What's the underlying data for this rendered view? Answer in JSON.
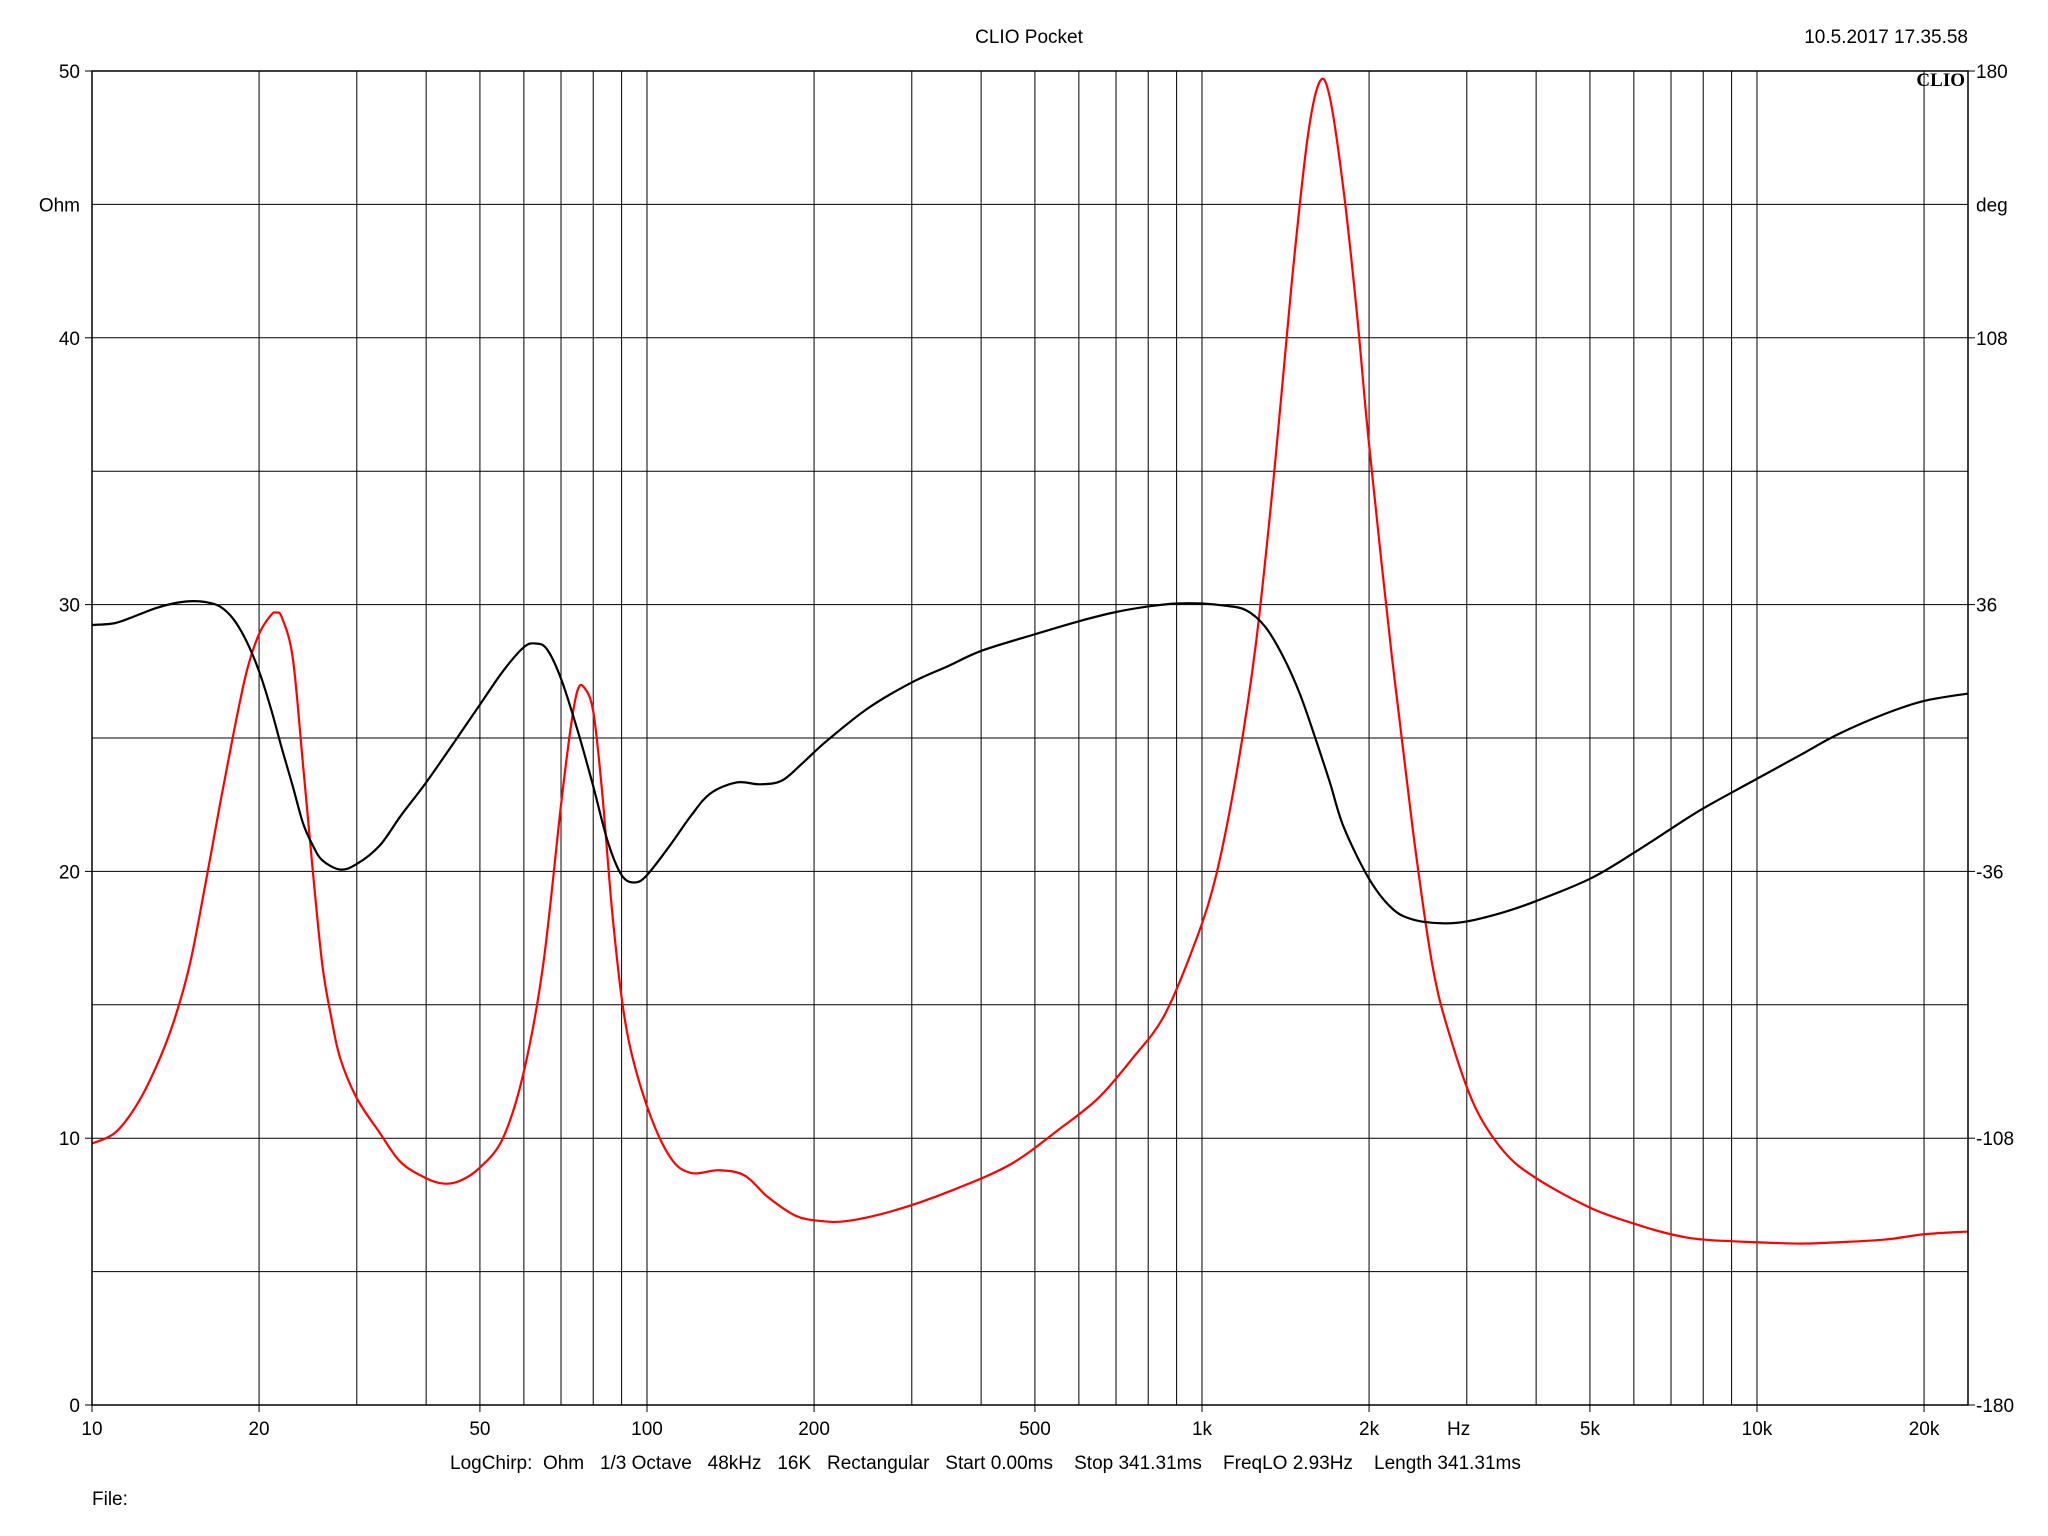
{
  "header": {
    "title": "CLIO Pocket",
    "timestamp": "10.5.2017 17.35.58",
    "logo": "CLIO"
  },
  "footer": {
    "settings": "LogChirp:  Ohm   1/3 Octave   48kHz   16K   Rectangular   Start 0.00ms    Stop 341.31ms    FreqLO 2.93Hz    Length 341.31ms",
    "file_label": "File:"
  },
  "chart_data": {
    "type": "line",
    "x_scale": "log",
    "xlim": [
      10,
      24000
    ],
    "x_tick_values": [
      10,
      20,
      50,
      100,
      200,
      500,
      1000,
      2000,
      5000,
      10000,
      20000
    ],
    "x_tick_labels": [
      "10",
      "20",
      "50",
      "100",
      "200",
      "500",
      "1k",
      "2k",
      "5k",
      "10k",
      "20k"
    ],
    "x_unit_label": "Hz",
    "y_left": {
      "unit": "Ohm",
      "lim": [
        0,
        50
      ],
      "tick_values": [
        0,
        10,
        20,
        30,
        40,
        50
      ],
      "tick_labels": [
        "0",
        "10",
        "20",
        "30",
        "40",
        "50"
      ]
    },
    "y_right": {
      "unit": "deg",
      "lim": [
        -180,
        180
      ],
      "tick_values": [
        -180,
        -108,
        -36,
        36,
        108,
        180
      ],
      "tick_labels": [
        "-180",
        "-108",
        "-36",
        "36",
        "108",
        "180"
      ]
    },
    "grid": true,
    "series": [
      {
        "color": "#ff0000",
        "axis": "left",
        "points": [
          [
            10,
            9.8
          ],
          [
            11,
            10.2
          ],
          [
            12,
            11.2
          ],
          [
            13,
            12.6
          ],
          [
            14,
            14.3
          ],
          [
            15,
            16.5
          ],
          [
            16,
            19.5
          ],
          [
            17,
            22.5
          ],
          [
            18,
            25.2
          ],
          [
            19,
            27.5
          ],
          [
            20,
            28.9
          ],
          [
            21,
            29.6
          ],
          [
            21.5,
            29.7
          ],
          [
            22,
            29.5
          ],
          [
            23,
            28
          ],
          [
            24,
            24
          ],
          [
            25,
            20
          ],
          [
            26,
            16.5
          ],
          [
            27,
            14.5
          ],
          [
            28,
            13
          ],
          [
            30,
            11.5
          ],
          [
            33,
            10.2
          ],
          [
            36,
            9.1
          ],
          [
            40,
            8.5
          ],
          [
            43,
            8.3
          ],
          [
            46,
            8.4
          ],
          [
            50,
            8.9
          ],
          [
            55,
            10
          ],
          [
            60,
            12.5
          ],
          [
            65,
            16.5
          ],
          [
            70,
            22.5
          ],
          [
            73,
            25.5
          ],
          [
            75,
            26.8
          ],
          [
            77,
            26.9
          ],
          [
            80,
            26
          ],
          [
            83,
            23
          ],
          [
            87,
            18
          ],
          [
            92,
            14
          ],
          [
            100,
            11.2
          ],
          [
            110,
            9.3
          ],
          [
            120,
            8.7
          ],
          [
            135,
            8.8
          ],
          [
            150,
            8.6
          ],
          [
            165,
            7.8
          ],
          [
            185,
            7.1
          ],
          [
            205,
            6.9
          ],
          [
            230,
            6.9
          ],
          [
            280,
            7.3
          ],
          [
            350,
            8
          ],
          [
            450,
            9
          ],
          [
            550,
            10.3
          ],
          [
            650,
            11.5
          ],
          [
            750,
            13
          ],
          [
            850,
            14.5
          ],
          [
            950,
            16.8
          ],
          [
            1050,
            19.5
          ],
          [
            1150,
            23.5
          ],
          [
            1250,
            28.5
          ],
          [
            1350,
            35
          ],
          [
            1450,
            42
          ],
          [
            1550,
            47.5
          ],
          [
            1630,
            49.6
          ],
          [
            1700,
            49
          ],
          [
            1800,
            45.5
          ],
          [
            1900,
            41
          ],
          [
            2000,
            36
          ],
          [
            2200,
            28
          ],
          [
            2400,
            21.5
          ],
          [
            2600,
            16.5
          ],
          [
            2800,
            13.8
          ],
          [
            3100,
            11.2
          ],
          [
            3500,
            9.5
          ],
          [
            4000,
            8.5
          ],
          [
            5000,
            7.4
          ],
          [
            6000,
            6.8
          ],
          [
            7000,
            6.4
          ],
          [
            8000,
            6.2
          ],
          [
            10000,
            6.1
          ],
          [
            12000,
            6.05
          ],
          [
            14000,
            6.1
          ],
          [
            17000,
            6.2
          ],
          [
            20000,
            6.4
          ],
          [
            24000,
            6.5
          ]
        ]
      },
      {
        "color": "#000000",
        "axis": "right",
        "points": [
          [
            10,
            30.5
          ],
          [
            11,
            31
          ],
          [
            12,
            33
          ],
          [
            13,
            35
          ],
          [
            14,
            36.3
          ],
          [
            15,
            36.9
          ],
          [
            16,
            36.7
          ],
          [
            17,
            35.5
          ],
          [
            18,
            32
          ],
          [
            19,
            26
          ],
          [
            20,
            18
          ],
          [
            21,
            8
          ],
          [
            22,
            -3
          ],
          [
            23,
            -13
          ],
          [
            24,
            -23
          ],
          [
            25,
            -29
          ],
          [
            26,
            -33
          ],
          [
            28,
            -35.5
          ],
          [
            30,
            -34
          ],
          [
            33,
            -29
          ],
          [
            36,
            -21
          ],
          [
            40,
            -12
          ],
          [
            45,
            -1
          ],
          [
            50,
            9
          ],
          [
            55,
            18
          ],
          [
            60,
            24.5
          ],
          [
            63,
            25.5
          ],
          [
            66,
            24
          ],
          [
            70,
            16
          ],
          [
            75,
            2
          ],
          [
            80,
            -13
          ],
          [
            85,
            -28
          ],
          [
            90,
            -37
          ],
          [
            95,
            -39
          ],
          [
            100,
            -37
          ],
          [
            110,
            -29
          ],
          [
            120,
            -21
          ],
          [
            130,
            -15
          ],
          [
            145,
            -12
          ],
          [
            160,
            -12.5
          ],
          [
            175,
            -11.5
          ],
          [
            190,
            -7
          ],
          [
            210,
            -1
          ],
          [
            250,
            8
          ],
          [
            300,
            15
          ],
          [
            350,
            19.5
          ],
          [
            400,
            23.5
          ],
          [
            500,
            28
          ],
          [
            600,
            31.5
          ],
          [
            700,
            34
          ],
          [
            800,
            35.5
          ],
          [
            900,
            36.3
          ],
          [
            1000,
            36.3
          ],
          [
            1100,
            35.7
          ],
          [
            1200,
            34.5
          ],
          [
            1300,
            30
          ],
          [
            1400,
            22
          ],
          [
            1500,
            12
          ],
          [
            1600,
            0
          ],
          [
            1700,
            -12
          ],
          [
            1800,
            -24
          ],
          [
            2000,
            -38
          ],
          [
            2200,
            -46
          ],
          [
            2400,
            -49
          ],
          [
            2700,
            -50
          ],
          [
            3000,
            -49.5
          ],
          [
            3500,
            -47
          ],
          [
            4000,
            -44
          ],
          [
            5000,
            -38
          ],
          [
            6000,
            -31
          ],
          [
            7000,
            -24.5
          ],
          [
            8000,
            -19
          ],
          [
            10000,
            -11
          ],
          [
            12000,
            -4.5
          ],
          [
            14000,
            1
          ],
          [
            17000,
            6.5
          ],
          [
            20000,
            10
          ],
          [
            24000,
            12
          ]
        ]
      }
    ]
  }
}
